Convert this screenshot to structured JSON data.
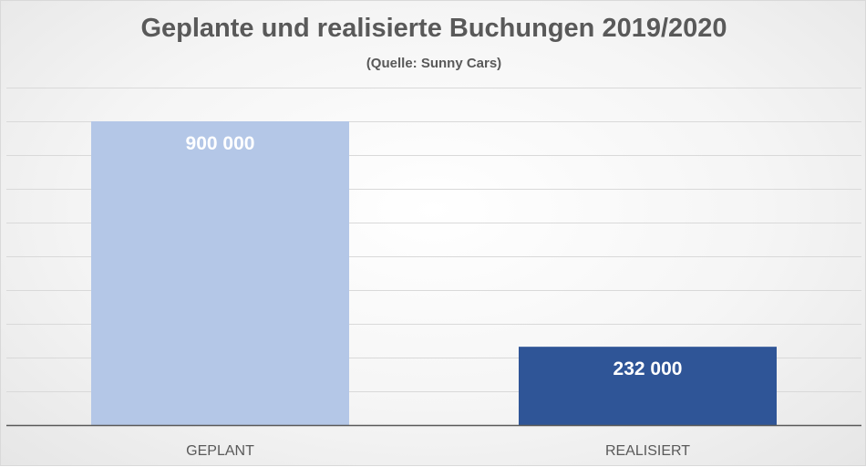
{
  "chart_data": {
    "type": "bar",
    "title": "Geplante und realisierte Buchungen 2019/2020",
    "subtitle": "(Quelle: Sunny Cars)",
    "categories": [
      "GEPLANT",
      "REALISIERT"
    ],
    "values": [
      900000,
      232000
    ],
    "data_labels": [
      "900 000",
      "232 000"
    ],
    "xlabel": "",
    "ylabel": "",
    "ylim": [
      0,
      1000000
    ],
    "grid": true,
    "legend": "none",
    "colors": {
      "bars": [
        "#b4c7e7",
        "#2f5597"
      ],
      "data_label": "#ffffff",
      "gridline": "#d9d9d9",
      "axis_line": "#595959",
      "tick_label": "#595959",
      "title": "#595959"
    }
  }
}
